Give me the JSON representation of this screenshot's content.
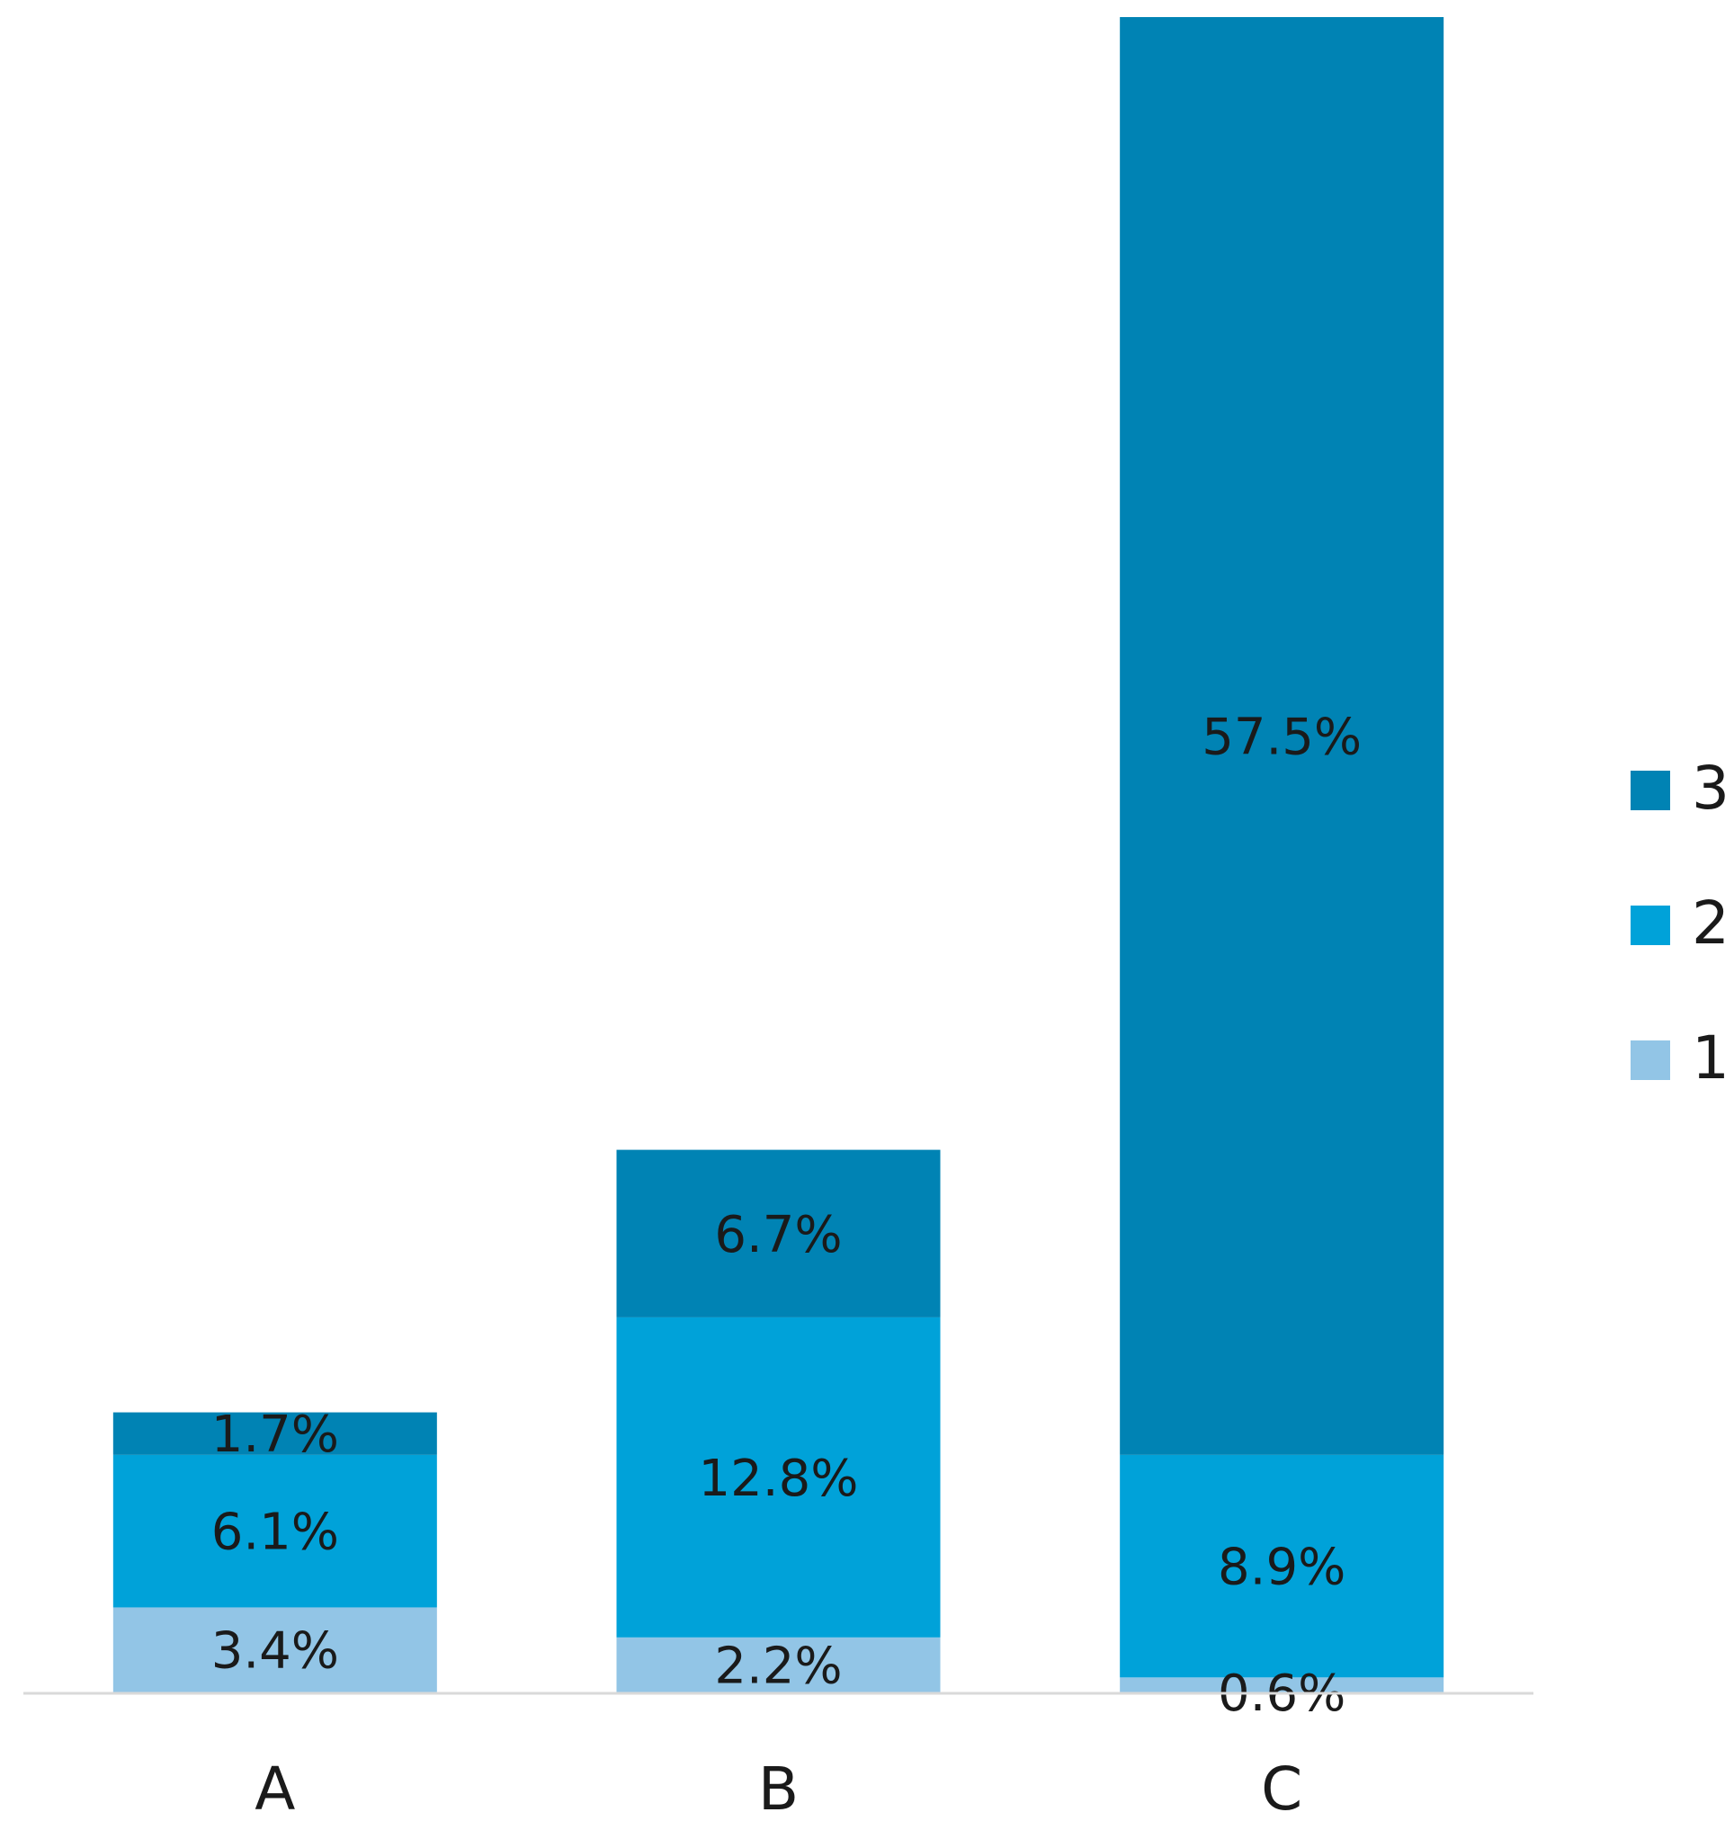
{
  "chart_data": {
    "type": "bar",
    "stacked": true,
    "categories": [
      "A",
      "B",
      "C"
    ],
    "series": [
      {
        "name": "1",
        "color": "#92c5e6",
        "values": [
          3.4,
          2.2,
          0.6
        ],
        "labels": [
          "3.4%",
          "2.2%",
          "0.6%"
        ]
      },
      {
        "name": "2",
        "color": "#00a2d9",
        "values": [
          6.1,
          12.8,
          8.9
        ],
        "labels": [
          "6.1%",
          "12.8%",
          "8.9%"
        ]
      },
      {
        "name": "3",
        "color": "#0083b4",
        "values": [
          1.7,
          6.7,
          57.5
        ],
        "labels": [
          "1.7%",
          "6.7%",
          "57.5%"
        ]
      }
    ],
    "ylim": [
      0,
      67
    ],
    "grid": false,
    "legend_position": "right",
    "axis_color": "#d9d9d9"
  }
}
